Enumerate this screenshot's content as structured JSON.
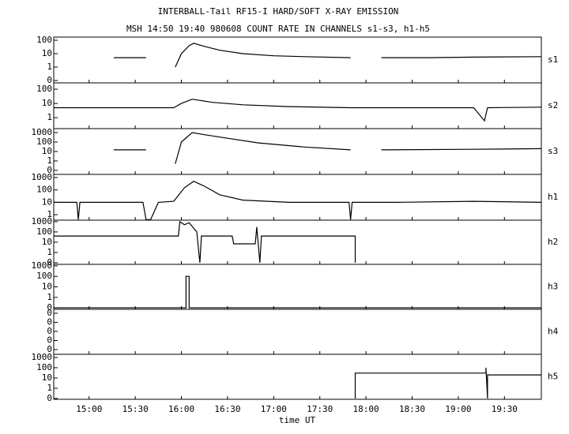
{
  "chart_data": {
    "type": "line",
    "title": "INTERBALL-Tail RF15-I HARD/SOFT X-RAY EMISSION",
    "subtitle": "MSH 14:50 19:40 980608  COUNT RATE IN CHANNELS s1-s3, h1-h5",
    "xlabel": "time UT",
    "xlim": [
      877,
      1194
    ],
    "xticks": [
      {
        "value": 900,
        "label": "15:00"
      },
      {
        "value": 930,
        "label": "15:30"
      },
      {
        "value": 960,
        "label": "16:00"
      },
      {
        "value": 990,
        "label": "16:30"
      },
      {
        "value": 1020,
        "label": "17:00"
      },
      {
        "value": 1050,
        "label": "17:30"
      },
      {
        "value": 1080,
        "label": "18:00"
      },
      {
        "value": 1110,
        "label": "18:30"
      },
      {
        "value": 1140,
        "label": "19:00"
      },
      {
        "value": 1170,
        "label": "19:30"
      }
    ],
    "color": "#000000",
    "panels": [
      {
        "name": "s1",
        "log": true,
        "ylim": [
          0.067,
          172
        ],
        "yticks": [
          {
            "value": 0.1,
            "label": "0"
          },
          1,
          10,
          100
        ],
        "x": [
          916,
          925,
          937,
          938,
          956,
          960,
          965,
          968,
          975,
          985,
          1000,
          1020,
          1040,
          1070,
          1071,
          1090,
          1120,
          1150,
          1194
        ],
        "values": [
          5,
          5,
          5,
          null,
          1,
          10,
          40,
          60,
          35,
          18,
          10,
          7,
          6,
          5,
          null,
          5,
          5,
          5.5,
          6
        ]
      },
      {
        "name": "s2",
        "log": true,
        "ylim": [
          0.17,
          280
        ],
        "yticks": [
          1,
          10,
          100
        ],
        "x": [
          877,
          900,
          930,
          955,
          960,
          967,
          980,
          1000,
          1030,
          1070,
          1100,
          1150,
          1157,
          1159,
          1194
        ],
        "values": [
          5,
          5,
          5,
          5,
          10,
          20,
          12,
          8,
          6,
          5,
          5,
          5,
          0.6,
          5,
          5.5
        ]
      },
      {
        "name": "s3",
        "log": true,
        "ylim": [
          0.038,
          2610
        ],
        "yticks": [
          {
            "value": 0.1,
            "label": "0"
          },
          1,
          10,
          100,
          1000
        ],
        "x": [
          916,
          937,
          938,
          956,
          960,
          967,
          975,
          990,
          1010,
          1040,
          1070,
          1071,
          1090,
          1150,
          1194
        ],
        "values": [
          15,
          15,
          null,
          0.5,
          100,
          1000,
          600,
          250,
          80,
          30,
          15,
          null,
          15,
          17,
          20
        ]
      },
      {
        "name": "h1",
        "log": true,
        "ylim": [
          0.36,
          1800
        ],
        "yticks": [
          1,
          10,
          100,
          1000
        ],
        "x": [
          877,
          892,
          893,
          894,
          935,
          937,
          940,
          945,
          955,
          962,
          968,
          975,
          985,
          1000,
          1030,
          1069,
          1070,
          1071,
          1100,
          1150,
          1194
        ],
        "values": [
          10,
          10,
          0.4,
          10,
          10,
          0.4,
          0.4,
          10,
          12,
          150,
          500,
          200,
          40,
          15,
          10,
          10,
          0.4,
          10,
          10,
          12,
          10
        ]
      },
      {
        "name": "h2",
        "log": true,
        "ylim": [
          0.07,
          1400
        ],
        "yticks": [
          {
            "value": 0.1,
            "label": "0"
          },
          1,
          10,
          100,
          1000
        ],
        "x": [
          877,
          958,
          959,
          962,
          965,
          970,
          972,
          973,
          980,
          993,
          994,
          1008,
          1009,
          1011,
          1012,
          1073,
          1073
        ],
        "values": [
          40,
          40,
          1000,
          500,
          800,
          100,
          0.1,
          40,
          40,
          40,
          7,
          7,
          300,
          0.1,
          40,
          40,
          0.1
        ]
      },
      {
        "name": "h3",
        "log": true,
        "ylim": [
          0.072,
          1390
        ],
        "yticks": [
          {
            "value": 0.1,
            "label": "0"
          },
          1,
          10,
          100,
          1000
        ],
        "x": [
          877,
          963,
          963,
          965,
          965,
          1194
        ],
        "values": [
          0.1,
          0.1,
          100,
          100,
          0.1,
          0.1
        ]
      },
      {
        "name": "h4",
        "log": false,
        "ylim": [
          -5.2e-05,
          0.000443
        ],
        "yticks": [
          {
            "value": 0,
            "label": "0"
          },
          {
            "value": 0.0001,
            "label": "0"
          },
          {
            "value": 0.0002,
            "label": "0"
          },
          {
            "value": 0.0003,
            "label": "0"
          },
          {
            "value": 0.0004,
            "label": "0"
          }
        ]
      },
      {
        "name": "h5",
        "log": true,
        "ylim": [
          0.084,
          2030
        ],
        "yticks": [
          {
            "value": 0.1,
            "label": "0"
          },
          1,
          10,
          100,
          1000
        ],
        "x": [
          1073,
          1073,
          1158,
          1158,
          1159,
          1159,
          1194
        ],
        "values": [
          0.1,
          30,
          30,
          100,
          0.1,
          20,
          20
        ]
      }
    ]
  }
}
